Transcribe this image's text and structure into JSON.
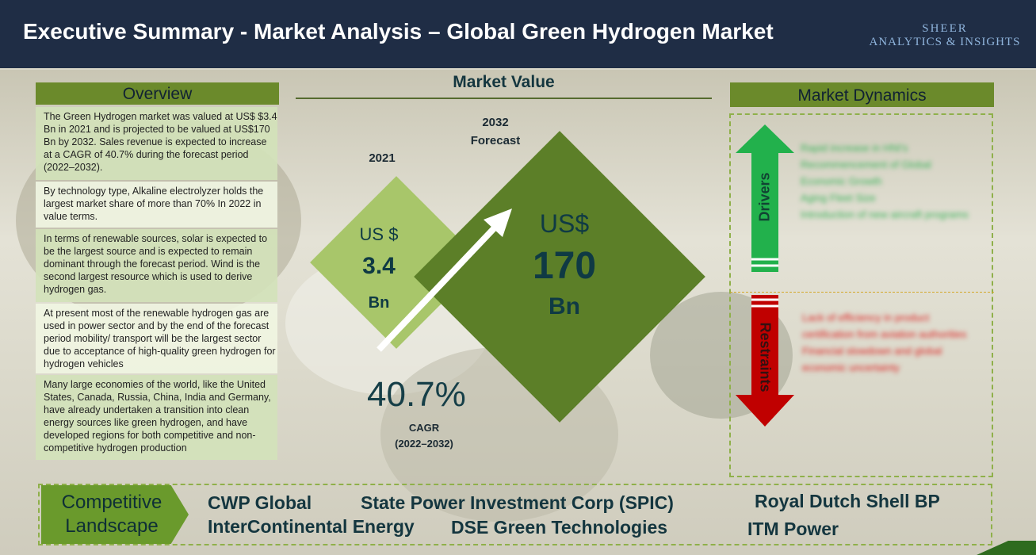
{
  "header": {
    "title": "Executive Summary - Market Analysis – Global Green Hydrogen Market",
    "logo_line1": "SHEER",
    "logo_line2": "ANALYTICS & INSIGHTS"
  },
  "overview": {
    "title": "Overview",
    "paragraphs": [
      "The Green Hydrogen market was valued at US$ $3.4 Bn in 2021 and is projected to be valued at US$170 Bn by 2032. Sales revenue is expected to increase at a CAGR of 40.7% during the forecast period (2022–2032).",
      "By technology type, Alkaline electrolyzer holds the largest market share of more than 70% In 2022 in value terms.",
      "In terms of renewable sources, solar is expected to be the largest source and is expected to remain dominant through the forecast period.  Wind is the second largest resource which is used to derive hydrogen gas.",
      "At present most of the renewable hydrogen gas are used in power sector and by the end of the forecast period mobility/ transport will be the largest sector due to acceptance of high-quality green hydrogen for hydrogen vehicles",
      "Many large economies of the world, like the United States, Canada, Russia, China, India and Germany, have already undertaken a transition into clean energy sources like green hydrogen, and have developed regions for both competitive and  non-competitive hydrogen production"
    ]
  },
  "market_value": {
    "title": "Market Value",
    "year_2021": "2021",
    "year_2032_line1": "2032",
    "year_2032_line2": "Forecast",
    "v2021_currency": "US $",
    "v2021_value": "3.4",
    "v2021_unit": "Bn",
    "v2032_currency": "US$",
    "v2032_value": "170",
    "v2032_unit": "Bn",
    "cagr_value": "40.7%",
    "cagr_label": "CAGR",
    "cagr_period": "(2022–2032)"
  },
  "market_dynamics": {
    "title": "Market Dynamics",
    "drivers_label": "Drivers",
    "restraints_label": "Restraints",
    "drivers": [
      "Rapid increase in HNI's",
      "Recommencement of Global Economic Growth",
      "Aging Fleet Size",
      "Introduction of new aircraft programs"
    ],
    "restraints": [
      "Lack of efficiency in product certification from aviation authorities",
      "Financial slowdown and global economic uncertainty"
    ]
  },
  "competitive_landscape": {
    "label_line1": "Competitive",
    "label_line2": "Landscape",
    "companies": [
      "CWP Global",
      "State Power Investment Corp (SPIC)",
      "Royal Dutch Shell BP",
      "InterContinental Energy",
      "DSE Green Technologies",
      "ITM Power"
    ]
  },
  "colors": {
    "header_bg": "#1f2d45",
    "section_green": "#6b8a2b",
    "diamond_light": "#a8c66a",
    "diamond_dark": "#5c7f28",
    "driver_arrow": "#22b14c",
    "restraint_arrow": "#c00000"
  }
}
